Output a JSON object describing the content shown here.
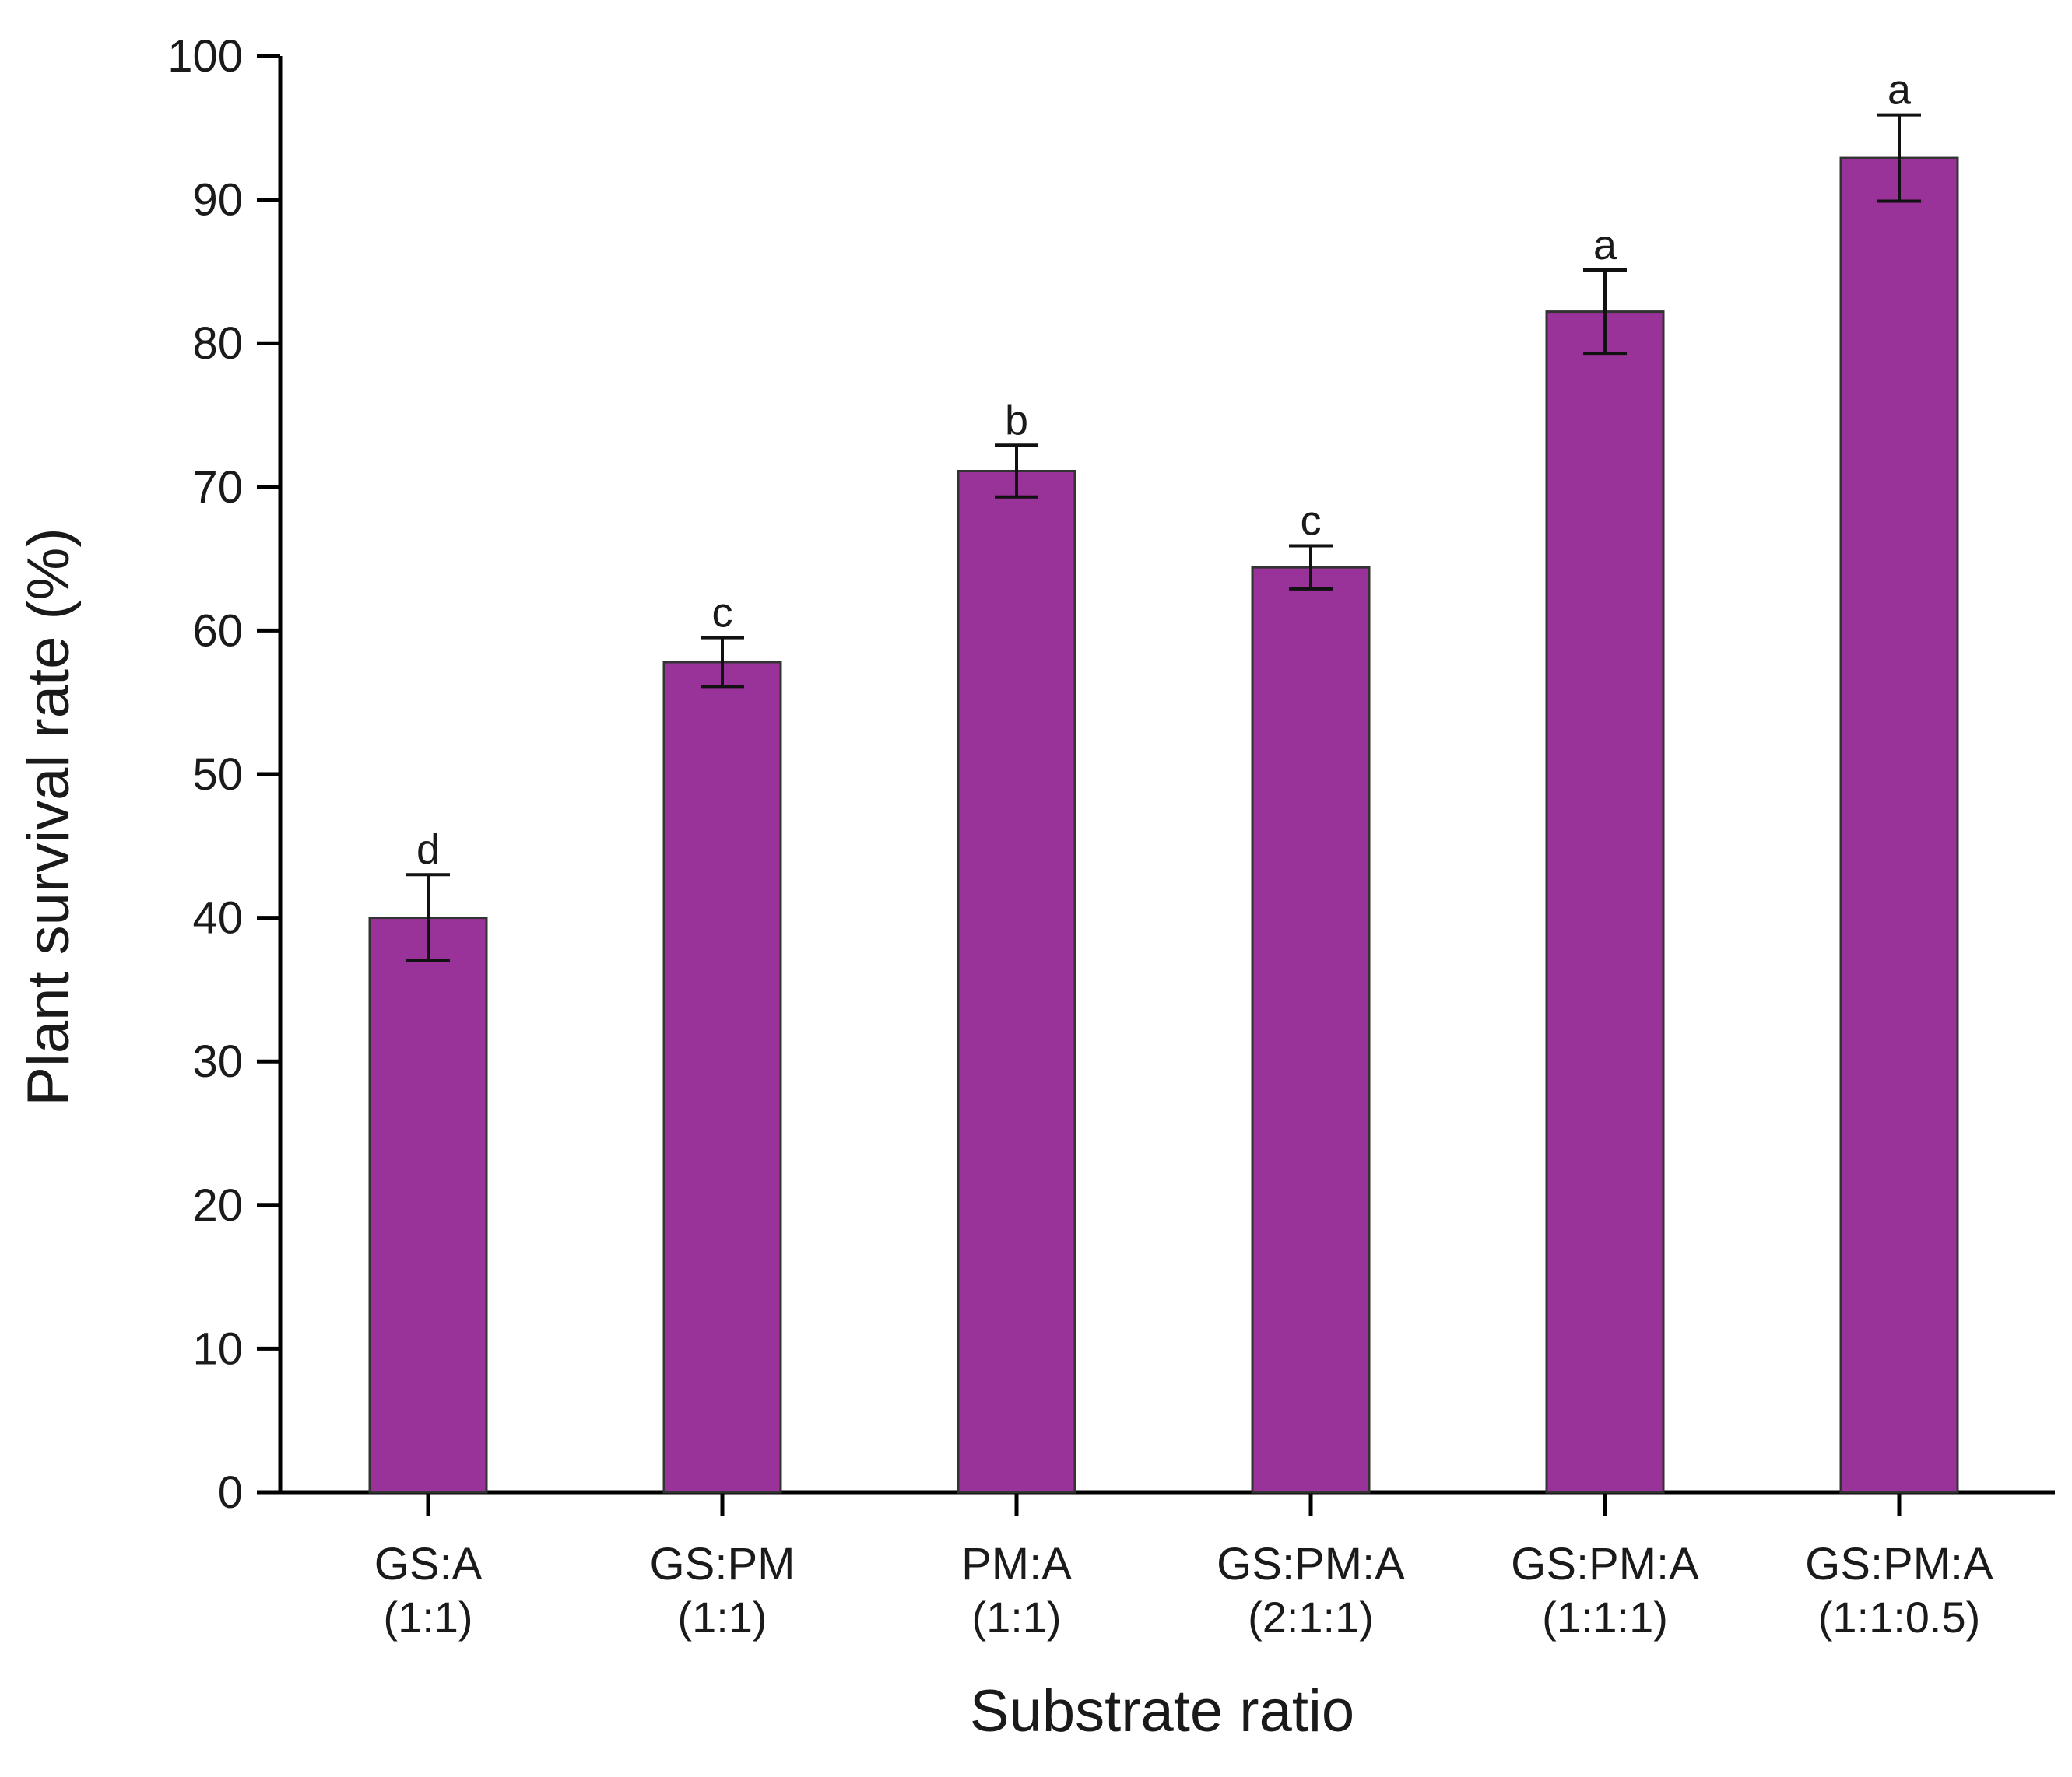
{
  "chart_data": {
    "type": "bar",
    "title": "",
    "xlabel": "Substrate ratio",
    "ylabel": "Plant survival rate (%)",
    "ylim": [
      0,
      100
    ],
    "yticks": [
      0,
      10,
      20,
      30,
      40,
      50,
      60,
      70,
      80,
      90,
      100
    ],
    "categories": [
      {
        "name": "GS:A",
        "ratio": "(1:1)"
      },
      {
        "name": "GS:PM",
        "ratio": "(1:1)"
      },
      {
        "name": "PM:A",
        "ratio": "(1:1)"
      },
      {
        "name": "GS:PM:A",
        "ratio": "(2:1:1)"
      },
      {
        "name": "GS:PM:A",
        "ratio": "(1:1:1)"
      },
      {
        "name": "GS:PM:A",
        "ratio": "(1:1:0.5)"
      }
    ],
    "values": [
      40.0,
      57.8,
      71.1,
      64.4,
      82.2,
      92.9
    ],
    "errors": [
      3.0,
      1.7,
      1.8,
      1.5,
      2.9,
      3.0
    ],
    "significance": [
      "d",
      "c",
      "b",
      "c",
      "a",
      "a"
    ],
    "bar_color": "#993399",
    "bar_edge_color": "#333333",
    "axis_color": "#000000"
  }
}
